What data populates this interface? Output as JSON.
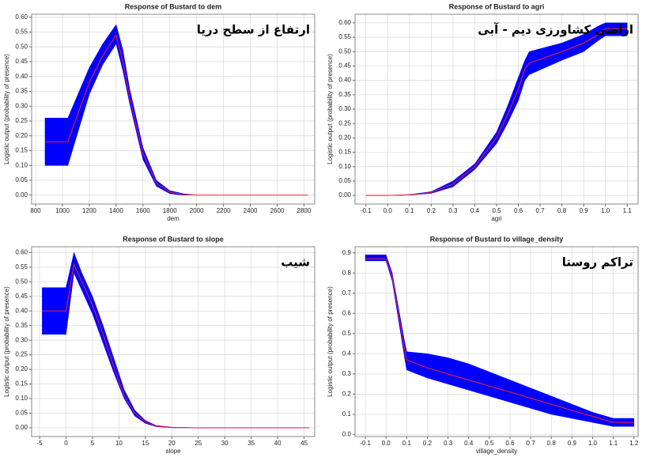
{
  "chart_data": [
    {
      "type": "line",
      "title": "Response of Bustard to dem",
      "xlabel": "dem",
      "ylabel": "Logistic output (probability of presence)",
      "annotation": "ارتفاع از سطح دریا",
      "color": "#ff2020",
      "band_color": "#0000ff",
      "grid": true,
      "x": [
        870,
        1040,
        1200,
        1300,
        1400,
        1450,
        1500,
        1600,
        1700,
        1800,
        1900,
        2000,
        2200,
        2830
      ],
      "values": [
        0.18,
        0.18,
        0.38,
        0.47,
        0.54,
        0.45,
        0.33,
        0.14,
        0.04,
        0.01,
        0.003,
        0,
        0,
        0
      ],
      "band_low": [
        0.1,
        0.1,
        0.34,
        0.44,
        0.51,
        0.42,
        0.31,
        0.12,
        0.03,
        0.005,
        0,
        0,
        0,
        0
      ],
      "band_high": [
        0.26,
        0.26,
        0.43,
        0.51,
        0.575,
        0.49,
        0.36,
        0.16,
        0.05,
        0.015,
        0.005,
        0,
        0,
        0
      ],
      "xlim": [
        770,
        2880
      ],
      "xticks": [
        800,
        1000,
        1200,
        1400,
        1600,
        1800,
        2000,
        2200,
        2400,
        2600,
        2800
      ],
      "ylim": [
        -0.03,
        0.61
      ],
      "yticks": [
        {
          "value": 0,
          "label": "0.00"
        },
        0.05,
        {
          "value": 0.1,
          "label": "0.10"
        },
        0.15,
        {
          "value": 0.2,
          "label": "0.20"
        },
        0.25,
        {
          "value": 0.3,
          "label": "0.30"
        },
        0.35,
        {
          "value": 0.4,
          "label": "0.40"
        },
        0.45,
        {
          "value": 0.5,
          "label": "0.50"
        },
        0.55,
        {
          "value": 0.6,
          "label": "0.60"
        }
      ]
    },
    {
      "type": "line",
      "title": "Response of Bustard to agri",
      "xlabel": "agri",
      "ylabel": "Logistic output (probability of presence)",
      "annotation": "اراضی کشاورزی دیم - آبی",
      "color": "#ff2020",
      "band_color": "#0000ff",
      "grid": true,
      "x": [
        -0.1,
        0,
        0.1,
        0.2,
        0.3,
        0.4,
        0.5,
        0.55,
        0.6,
        0.63,
        0.65,
        0.8,
        0.9,
        0.97,
        1.0,
        1.1
      ],
      "values": [
        0,
        0,
        0.002,
        0.01,
        0.04,
        0.1,
        0.2,
        0.28,
        0.37,
        0.44,
        0.46,
        0.5,
        0.53,
        0.56,
        0.58,
        0.58
      ],
      "band_low": [
        0,
        0,
        0.001,
        0.007,
        0.03,
        0.09,
        0.18,
        0.25,
        0.33,
        0.4,
        0.42,
        0.47,
        0.5,
        0.54,
        0.555,
        0.555
      ],
      "band_high": [
        0,
        0,
        0.003,
        0.013,
        0.05,
        0.11,
        0.22,
        0.31,
        0.41,
        0.47,
        0.5,
        0.53,
        0.56,
        0.59,
        0.6,
        0.6
      ],
      "xlim": [
        -0.15,
        1.15
      ],
      "xticks": [
        -0.1,
        {
          "value": 0,
          "label": "0.0"
        },
        0.1,
        0.2,
        0.3,
        0.4,
        0.5,
        0.6,
        0.7,
        0.8,
        0.9,
        {
          "value": 1,
          "label": "1.0"
        },
        1.1
      ],
      "ylim": [
        -0.03,
        0.63
      ],
      "yticks": [
        {
          "value": 0,
          "label": "0.00"
        },
        0.05,
        {
          "value": 0.1,
          "label": "0.10"
        },
        0.15,
        {
          "value": 0.2,
          "label": "0.20"
        },
        0.25,
        {
          "value": 0.3,
          "label": "0.30"
        },
        0.35,
        {
          "value": 0.4,
          "label": "0.40"
        },
        0.45,
        {
          "value": 0.5,
          "label": "0.50"
        },
        0.55,
        {
          "value": 0.6,
          "label": "0.60"
        }
      ]
    },
    {
      "type": "line",
      "title": "Response of Bustard to slope",
      "xlabel": "slope",
      "ylabel": "Logistic output (probability of presence)",
      "annotation": "شیب",
      "color": "#ff2020",
      "band_color": "#0000ff",
      "grid": true,
      "x": [
        -4.5,
        0,
        1.5,
        3,
        5,
        7,
        9,
        11,
        13,
        15,
        17,
        20,
        25,
        46
      ],
      "values": [
        0.4,
        0.4,
        0.56,
        0.5,
        0.42,
        0.32,
        0.21,
        0.11,
        0.05,
        0.02,
        0.006,
        0.001,
        0,
        0
      ],
      "band_low": [
        0.32,
        0.32,
        0.53,
        0.47,
        0.39,
        0.29,
        0.19,
        0.1,
        0.04,
        0.015,
        0.004,
        0,
        0,
        0
      ],
      "band_high": [
        0.48,
        0.48,
        0.6,
        0.53,
        0.45,
        0.35,
        0.24,
        0.13,
        0.06,
        0.025,
        0.008,
        0.002,
        0,
        0
      ],
      "xlim": [
        -6.5,
        47
      ],
      "xticks": [
        -5,
        0,
        5,
        10,
        15,
        20,
        25,
        30,
        35,
        40,
        45
      ],
      "ylim": [
        -0.03,
        0.62
      ],
      "yticks": [
        {
          "value": 0,
          "label": "0.00"
        },
        0.05,
        {
          "value": 0.1,
          "label": "0.10"
        },
        0.15,
        {
          "value": 0.2,
          "label": "0.20"
        },
        0.25,
        {
          "value": 0.3,
          "label": "0.30"
        },
        0.35,
        {
          "value": 0.4,
          "label": "0.40"
        },
        0.45,
        {
          "value": 0.5,
          "label": "0.50"
        },
        0.55,
        {
          "value": 0.6,
          "label": "0.60"
        }
      ]
    },
    {
      "type": "line",
      "title": "Response of Bustard to village_density",
      "xlabel": "village_density",
      "ylabel": "Logistic output (probability of presence)",
      "annotation": "تراکم روستا",
      "color": "#ff2020",
      "band_color": "#0000ff",
      "grid": true,
      "x": [
        -0.1,
        0,
        0.03,
        0.06,
        0.09,
        0.1,
        0.2,
        0.3,
        0.4,
        0.5,
        0.6,
        0.7,
        0.8,
        0.9,
        1.0,
        1.1,
        1.2
      ],
      "values": [
        0.87,
        0.87,
        0.78,
        0.6,
        0.42,
        0.37,
        0.33,
        0.3,
        0.27,
        0.24,
        0.21,
        0.18,
        0.15,
        0.12,
        0.09,
        0.06,
        0.06
      ],
      "band_low": [
        0.86,
        0.86,
        0.76,
        0.57,
        0.38,
        0.32,
        0.28,
        0.25,
        0.22,
        0.19,
        0.16,
        0.13,
        0.1,
        0.08,
        0.06,
        0.04,
        0.04
      ],
      "band_high": [
        0.89,
        0.89,
        0.8,
        0.63,
        0.46,
        0.41,
        0.4,
        0.38,
        0.35,
        0.31,
        0.27,
        0.23,
        0.19,
        0.15,
        0.11,
        0.08,
        0.08
      ],
      "xlim": [
        -0.15,
        1.22
      ],
      "xticks": [
        -0.1,
        {
          "value": 0,
          "label": "0.0"
        },
        0.1,
        0.2,
        0.3,
        0.4,
        0.5,
        0.6,
        0.7,
        0.8,
        0.9,
        {
          "value": 1,
          "label": "1.0"
        },
        1.1,
        1.2
      ],
      "ylim": [
        -0.01,
        0.93
      ],
      "yticks": [
        {
          "value": 0,
          "label": "0.0"
        },
        0.1,
        0.2,
        0.3,
        0.4,
        0.5,
        0.6,
        0.7,
        0.8,
        0.9
      ]
    }
  ]
}
